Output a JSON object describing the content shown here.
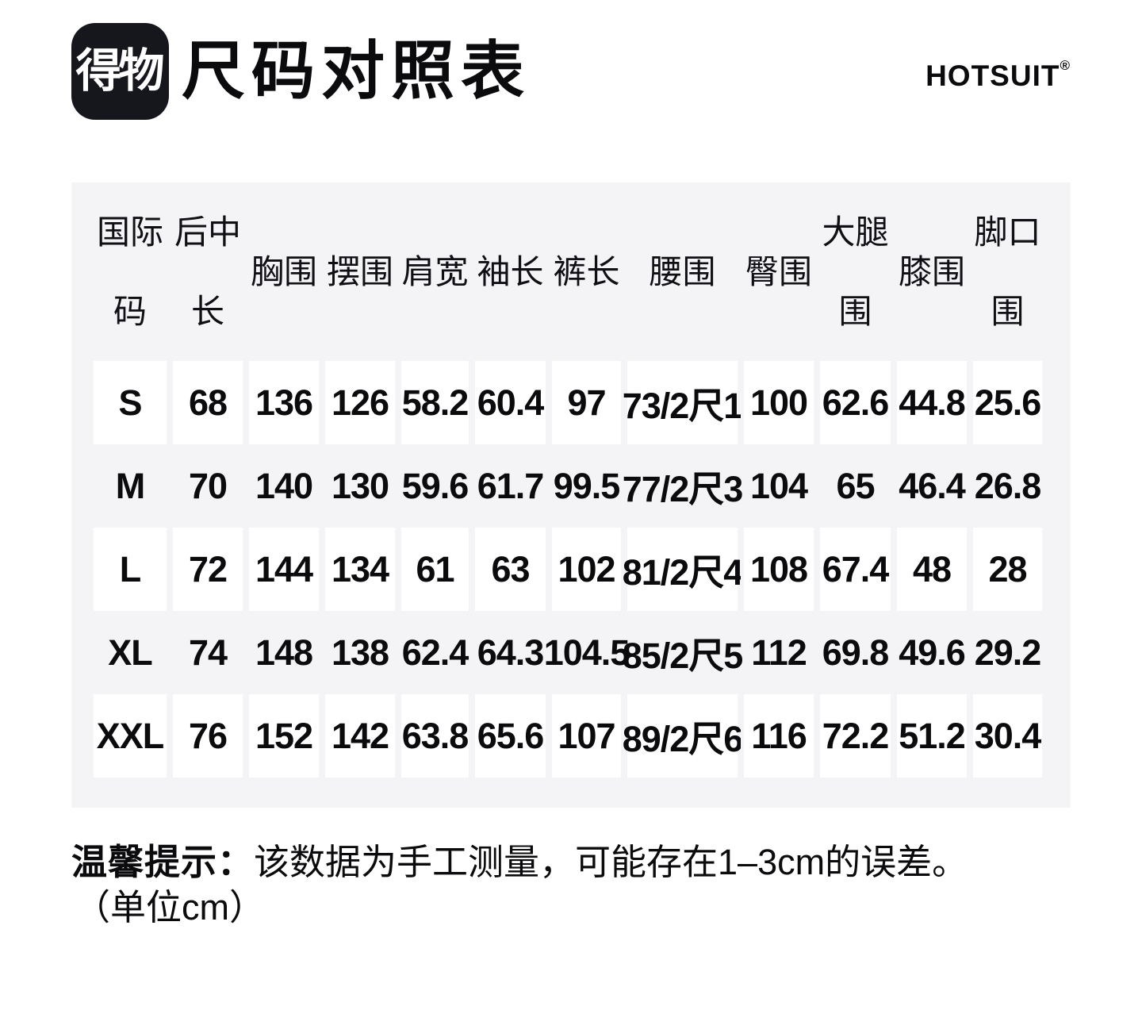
{
  "header": {
    "logo_text": "得物",
    "title": "尺码对照表",
    "brand": "HOTSUIT",
    "brand_reg": "®"
  },
  "table": {
    "columns": [
      "国际码",
      "后中长",
      "胸围",
      "摆围",
      "肩宽",
      "袖长",
      "裤长",
      "腰围",
      "臀围",
      "大腿围",
      "膝围",
      "脚口围"
    ],
    "rows": [
      {
        "size": "S",
        "values": [
          "68",
          "136",
          "126",
          "58.2",
          "60.4",
          "97",
          "73/2尺1",
          "100",
          "62.6",
          "44.8",
          "25.6"
        ]
      },
      {
        "size": "M",
        "values": [
          "70",
          "140",
          "130",
          "59.6",
          "61.7",
          "99.5",
          "77/2尺3",
          "104",
          "65",
          "46.4",
          "26.8"
        ]
      },
      {
        "size": "L",
        "values": [
          "72",
          "144",
          "134",
          "61",
          "63",
          "102",
          "81/2尺4",
          "108",
          "67.4",
          "48",
          "28"
        ]
      },
      {
        "size": "XL",
        "values": [
          "74",
          "148",
          "138",
          "62.4",
          "64.3",
          "104.5",
          "85/2尺5",
          "112",
          "69.8",
          "49.6",
          "29.2"
        ]
      },
      {
        "size": "XXL",
        "values": [
          "76",
          "152",
          "142",
          "63.8",
          "65.6",
          "107",
          "89/2尺6",
          "116",
          "72.2",
          "51.2",
          "30.4"
        ]
      }
    ]
  },
  "note": {
    "label": "温馨提示：",
    "text": "该数据为手工测量，可能存在1–3cm的误差。",
    "unit": "（单位cm）"
  },
  "colors": {
    "panel_bg": "#f4f4f6",
    "cell_bg": "#ffffff",
    "text": "#0b0b0d",
    "logo_bg": "#16161d"
  }
}
